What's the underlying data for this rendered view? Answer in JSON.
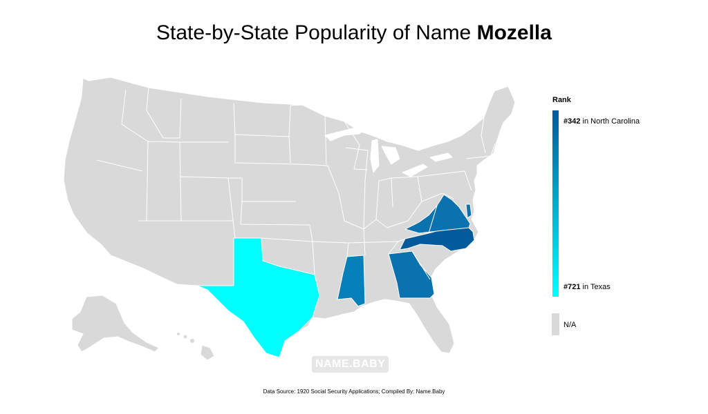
{
  "title": {
    "prefix": "State-by-State Popularity of Name ",
    "name": "Mozella"
  },
  "legend": {
    "heading": "Rank",
    "top_rank": "#342",
    "top_label": " in North Carolina",
    "bottom_rank": "#721",
    "bottom_label": " in Texas",
    "na_label": "N/A",
    "gradient_top_color": "#005a9c",
    "gradient_bottom_color": "#00ffff",
    "na_color": "#d9d9d9"
  },
  "watermark": "NAME.BABY",
  "footer": "Data Source: 1920 Social Security Applications; Compiled By: Name.Baby",
  "map_data": {
    "type": "choropleth",
    "region": "United States",
    "default_color": "#d9d9d9",
    "states": [
      {
        "state": "North Carolina",
        "rank": 342,
        "color": "#005a9c"
      },
      {
        "state": "Virginia",
        "color": "#0a72ae"
      },
      {
        "state": "Georgia",
        "color": "#0a72ae"
      },
      {
        "state": "Mississippi",
        "color": "#0580b8"
      },
      {
        "state": "Delaware",
        "color": "#0a72ae"
      },
      {
        "state": "Texas",
        "rank": 721,
        "color": "#00ffff"
      }
    ]
  }
}
